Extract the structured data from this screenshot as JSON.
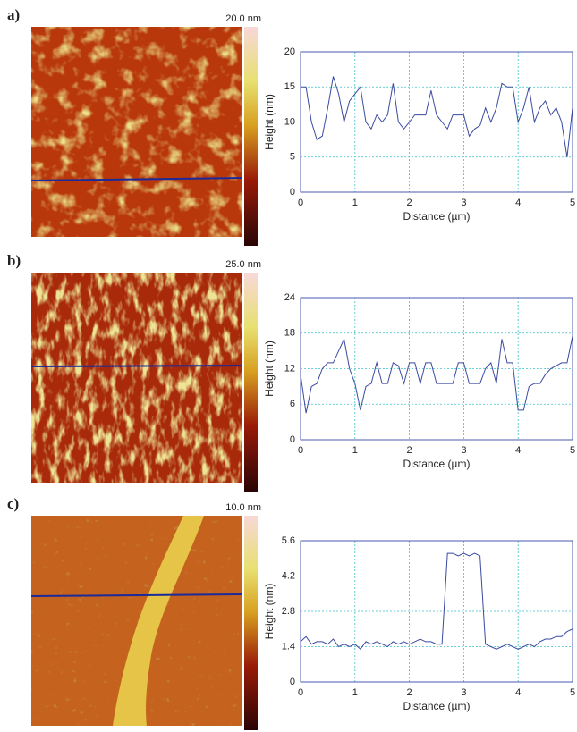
{
  "chart_data": [
    {
      "type": "line",
      "panel_label": "a)",
      "colorbar_label": "20.0 nm",
      "xlabel": "Distance (µm)",
      "ylabel": "Height (nm)",
      "color": "#3a4aa0",
      "grid": true,
      "xlim": [
        0,
        5
      ],
      "ylim": [
        0,
        20
      ],
      "xticks": [
        0,
        1,
        2,
        3,
        4,
        5
      ],
      "yticks": [
        0,
        5,
        10,
        15,
        20
      ],
      "x": [
        0,
        0.1,
        0.2,
        0.3,
        0.4,
        0.5,
        0.6,
        0.7,
        0.8,
        0.9,
        1,
        1.1,
        1.2,
        1.3,
        1.4,
        1.5,
        1.6,
        1.7,
        1.8,
        1.9,
        2,
        2.1,
        2.2,
        2.3,
        2.4,
        2.5,
        2.6,
        2.7,
        2.8,
        2.9,
        3,
        3.1,
        3.2,
        3.3,
        3.4,
        3.5,
        3.6,
        3.7,
        3.8,
        3.9,
        4,
        4.1,
        4.2,
        4.3,
        4.4,
        4.5,
        4.6,
        4.7,
        4.8,
        4.9,
        5
      ],
      "values": [
        15,
        15,
        10,
        7.5,
        8,
        12,
        16.5,
        14,
        10,
        13,
        14,
        15,
        10,
        9,
        11,
        10,
        11,
        15.5,
        10,
        9,
        10,
        11,
        11,
        11,
        14.5,
        11,
        10,
        9,
        11,
        11,
        11,
        8,
        9,
        9.5,
        12,
        10,
        12,
        15.5,
        15,
        15,
        10,
        12,
        15,
        10,
        12,
        13,
        11,
        12,
        10,
        5,
        12
      ]
    },
    {
      "type": "line",
      "panel_label": "b)",
      "colorbar_label": "25.0 nm",
      "xlabel": "Distance (µm)",
      "ylabel": "Height (nm)",
      "color": "#3a4aa0",
      "grid": true,
      "xlim": [
        0,
        5
      ],
      "ylim": [
        0,
        24
      ],
      "xticks": [
        0,
        1,
        2,
        3,
        4,
        5
      ],
      "yticks": [
        0,
        6,
        12,
        18,
        24
      ],
      "x": [
        0,
        0.1,
        0.2,
        0.3,
        0.4,
        0.5,
        0.6,
        0.7,
        0.8,
        0.9,
        1,
        1.1,
        1.2,
        1.3,
        1.4,
        1.5,
        1.6,
        1.7,
        1.8,
        1.9,
        2,
        2.1,
        2.2,
        2.3,
        2.4,
        2.5,
        2.6,
        2.7,
        2.8,
        2.9,
        3,
        3.1,
        3.2,
        3.3,
        3.4,
        3.5,
        3.6,
        3.7,
        3.8,
        3.9,
        4,
        4.1,
        4.2,
        4.3,
        4.4,
        4.5,
        4.6,
        4.7,
        4.8,
        4.9,
        5
      ],
      "values": [
        11,
        4.5,
        9,
        9.5,
        12,
        13,
        13,
        15,
        17,
        12,
        9.5,
        5,
        9,
        9.5,
        13,
        9.5,
        9.5,
        13,
        12.5,
        9.5,
        13,
        13,
        9.5,
        13,
        13,
        9.5,
        9.5,
        9.5,
        9.5,
        13,
        13,
        9.5,
        9.5,
        9.5,
        12,
        13,
        9.5,
        17,
        13,
        13,
        5,
        5,
        9,
        9.5,
        9.5,
        11,
        12,
        12.5,
        13,
        13,
        17.5
      ]
    },
    {
      "type": "line",
      "panel_label": "c)",
      "colorbar_label": "10.0 nm",
      "xlabel": "Distance (µm)",
      "ylabel": "Height (nm)",
      "color": "#3a4aa0",
      "grid": true,
      "xlim": [
        0,
        5
      ],
      "ylim": [
        0,
        5.6
      ],
      "xticks": [
        0,
        1,
        2,
        3,
        4,
        5
      ],
      "yticks": [
        0,
        1.4,
        2.8,
        4.2,
        5.6
      ],
      "x": [
        0,
        0.1,
        0.2,
        0.3,
        0.4,
        0.5,
        0.6,
        0.7,
        0.8,
        0.9,
        1,
        1.1,
        1.2,
        1.3,
        1.4,
        1.5,
        1.6,
        1.7,
        1.8,
        1.9,
        2,
        2.1,
        2.2,
        2.3,
        2.4,
        2.5,
        2.6,
        2.7,
        2.8,
        2.9,
        3,
        3.1,
        3.2,
        3.3,
        3.4,
        3.5,
        3.6,
        3.7,
        3.8,
        3.9,
        4,
        4.1,
        4.2,
        4.3,
        4.4,
        4.5,
        4.6,
        4.7,
        4.8,
        4.9,
        5
      ],
      "values": [
        1.6,
        1.8,
        1.5,
        1.6,
        1.6,
        1.5,
        1.7,
        1.4,
        1.5,
        1.4,
        1.5,
        1.3,
        1.6,
        1.5,
        1.6,
        1.5,
        1.4,
        1.6,
        1.5,
        1.6,
        1.5,
        1.6,
        1.7,
        1.6,
        1.6,
        1.5,
        1.5,
        5.1,
        5.1,
        5,
        5.1,
        5,
        5.1,
        5,
        1.5,
        1.4,
        1.3,
        1.4,
        1.5,
        1.4,
        1.3,
        1.4,
        1.5,
        1.4,
        1.6,
        1.7,
        1.7,
        1.8,
        1.8,
        2,
        2.1
      ]
    }
  ]
}
